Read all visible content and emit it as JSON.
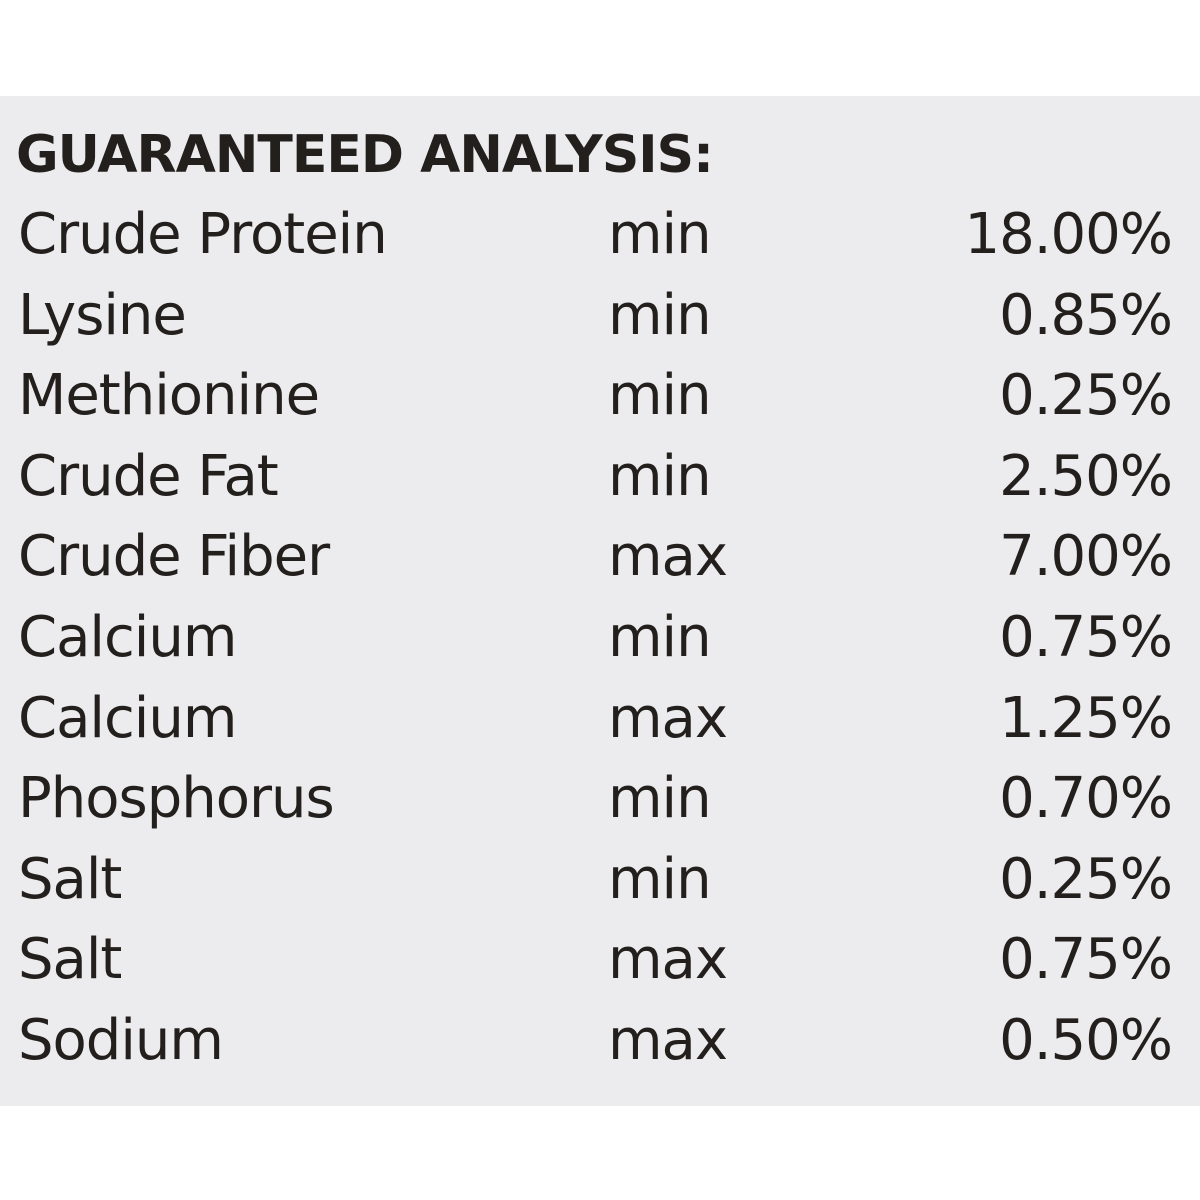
{
  "title": "GUARANTEED ANALYSIS:",
  "table": {
    "rows": [
      [
        "Crude Protein",
        "min",
        "18.00%"
      ],
      [
        "Lysine",
        "min",
        "0.85%"
      ],
      [
        "Methionine",
        "min",
        "0.25%"
      ],
      [
        "Crude Fat",
        "min",
        "2.50%"
      ],
      [
        "Crude Fiber",
        "max",
        "7.00%"
      ],
      [
        "Calcium",
        "min",
        "0.75%"
      ],
      [
        "Calcium",
        "max",
        "1.25%"
      ],
      [
        "Phosphorus",
        "min",
        "0.70%"
      ],
      [
        "Salt",
        "min",
        "0.25%"
      ],
      [
        "Salt",
        "max",
        "0.75%"
      ],
      [
        "Sodium",
        "max",
        "0.50%"
      ]
    ]
  }
}
